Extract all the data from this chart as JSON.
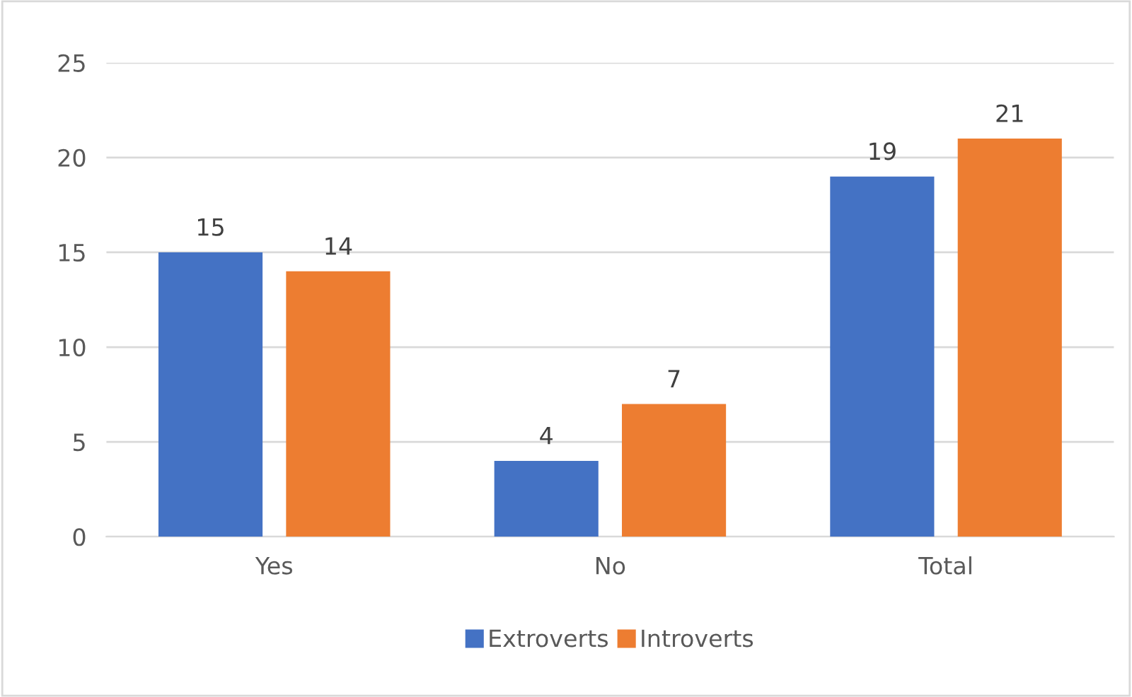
{
  "chart_data": {
    "type": "bar",
    "categories": [
      "Yes",
      "No",
      "Total"
    ],
    "series": [
      {
        "name": "Extroverts",
        "color": "#4472c4",
        "values": [
          15,
          4,
          19
        ]
      },
      {
        "name": "Introverts",
        "color": "#ed7d31",
        "values": [
          14,
          7,
          21
        ]
      }
    ],
    "ylim": [
      0,
      25
    ],
    "yticks": [
      0,
      5,
      10,
      15,
      20,
      25
    ],
    "grid": "y",
    "legend": "bottom",
    "data_labels": true
  }
}
